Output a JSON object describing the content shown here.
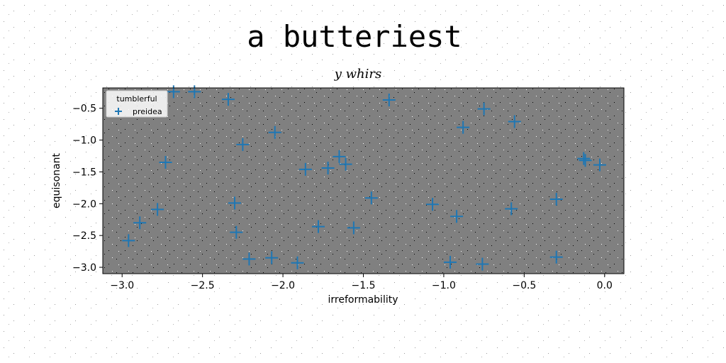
{
  "chart_data": {
    "type": "scatter",
    "title": "a butteriest",
    "subtitle": "y whirs",
    "xlabel": "irreformability",
    "ylabel": "equisonant",
    "xlim": [
      -3.12,
      0.12
    ],
    "ylim": [
      -3.1,
      -0.18
    ],
    "xticks": [
      -3.0,
      -2.5,
      -2.0,
      -1.5,
      -1.0,
      -0.5,
      0.0
    ],
    "xtick_labels": [
      "−3.0",
      "−2.5",
      "−2.0",
      "−1.5",
      "−1.0",
      "−0.5",
      "0.0"
    ],
    "yticks": [
      -0.5,
      -1.0,
      -1.5,
      -2.0,
      -2.5,
      -3.0
    ],
    "ytick_labels": [
      "−0.5",
      "−1.0",
      "−1.5",
      "−2.0",
      "−2.5",
      "−3.0"
    ],
    "grid": false,
    "plot_background": "#808080",
    "legend": {
      "title": "tumblerful",
      "placement": "top-left",
      "entries": [
        "preidea"
      ]
    },
    "series": [
      {
        "name": "preidea",
        "marker": "+",
        "color": "#1f77b4",
        "points": [
          {
            "x": -2.68,
            "y": -0.24
          },
          {
            "x": -2.55,
            "y": -0.24
          },
          {
            "x": -2.34,
            "y": -0.36
          },
          {
            "x": -1.34,
            "y": -0.37
          },
          {
            "x": -0.75,
            "y": -0.51
          },
          {
            "x": -0.56,
            "y": -0.71
          },
          {
            "x": -0.88,
            "y": -0.8
          },
          {
            "x": -2.05,
            "y": -0.88
          },
          {
            "x": -2.25,
            "y": -1.07
          },
          {
            "x": -1.65,
            "y": -1.26
          },
          {
            "x": -1.61,
            "y": -1.38
          },
          {
            "x": -1.72,
            "y": -1.44
          },
          {
            "x": -1.86,
            "y": -1.46
          },
          {
            "x": -2.73,
            "y": -1.35
          },
          {
            "x": -0.13,
            "y": -1.29
          },
          {
            "x": -0.12,
            "y": -1.32
          },
          {
            "x": -0.03,
            "y": -1.39
          },
          {
            "x": -1.45,
            "y": -1.91
          },
          {
            "x": -0.3,
            "y": -1.93
          },
          {
            "x": -2.3,
            "y": -1.99
          },
          {
            "x": -1.07,
            "y": -2.01
          },
          {
            "x": -0.58,
            "y": -2.08
          },
          {
            "x": -2.78,
            "y": -2.09
          },
          {
            "x": -0.92,
            "y": -2.2
          },
          {
            "x": -2.89,
            "y": -2.3
          },
          {
            "x": -1.78,
            "y": -2.36
          },
          {
            "x": -1.56,
            "y": -2.38
          },
          {
            "x": -2.29,
            "y": -2.45
          },
          {
            "x": -2.96,
            "y": -2.58
          },
          {
            "x": -2.21,
            "y": -2.87
          },
          {
            "x": -2.07,
            "y": -2.85
          },
          {
            "x": -0.3,
            "y": -2.84
          },
          {
            "x": -1.91,
            "y": -2.93
          },
          {
            "x": -0.96,
            "y": -2.92
          },
          {
            "x": -0.76,
            "y": -2.95
          }
        ]
      }
    ]
  }
}
